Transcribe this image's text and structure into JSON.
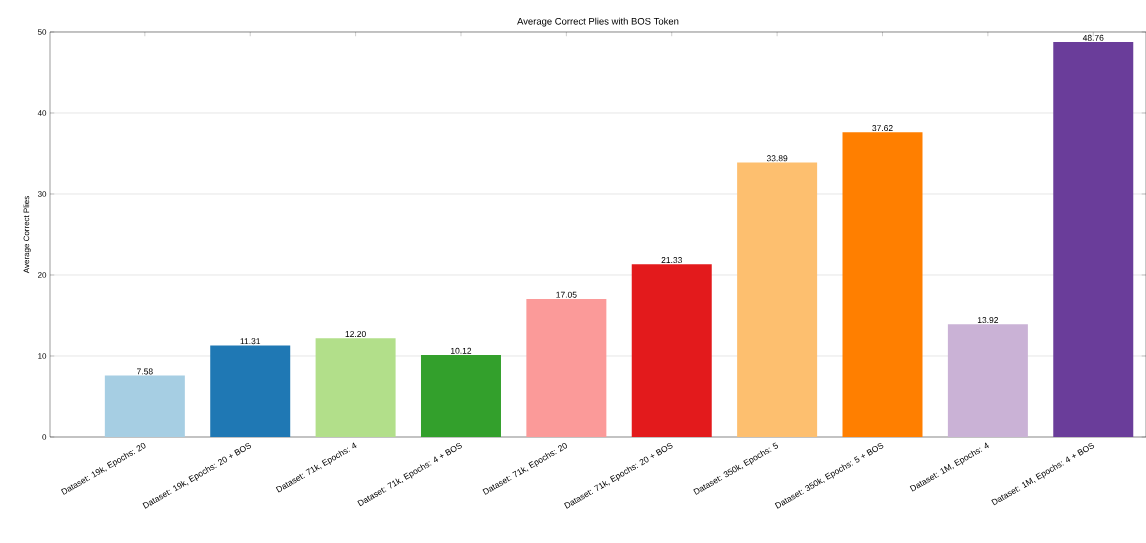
{
  "chart_data": {
    "type": "bar",
    "title": "Average Correct Plies with BOS Token",
    "ylabel": "Average Correct Plies",
    "categories": [
      "Dataset: 19k, Epochs: 20",
      "Dataset: 19k, Epochs: 20 + BOS",
      "Dataset: 71k, Epochs: 4",
      "Dataset: 71k, Epochs: 4 + BOS",
      "Dataset: 71k, Epochs: 20",
      "Dataset: 71k, Epochs: 20 + BOS",
      "Dataset: 350k, Epochs: 5",
      "Dataset: 350k, Epochs: 5 + BOS",
      "Dataset: 1M, Epochs: 4",
      "Dataset: 1M, Epochs: 4 + BOS"
    ],
    "values": [
      7.58,
      11.31,
      12.2,
      10.12,
      17.05,
      21.33,
      33.89,
      37.62,
      13.92,
      48.76
    ],
    "value_labels": [
      "7.58",
      "11.31",
      "12.20",
      "10.12",
      "17.05",
      "21.33",
      "33.89",
      "37.62",
      "13.92",
      "48.76"
    ],
    "colors": [
      "#a6cee3",
      "#1f78b4",
      "#b2df8a",
      "#33a02c",
      "#fb9a99",
      "#e31a1c",
      "#fdbf6f",
      "#ff7f00",
      "#cab2d6",
      "#6a3d9a"
    ],
    "ylim": [
      0,
      50
    ],
    "yticks": [
      0,
      10,
      20,
      30,
      40,
      50
    ],
    "grid": "y"
  }
}
